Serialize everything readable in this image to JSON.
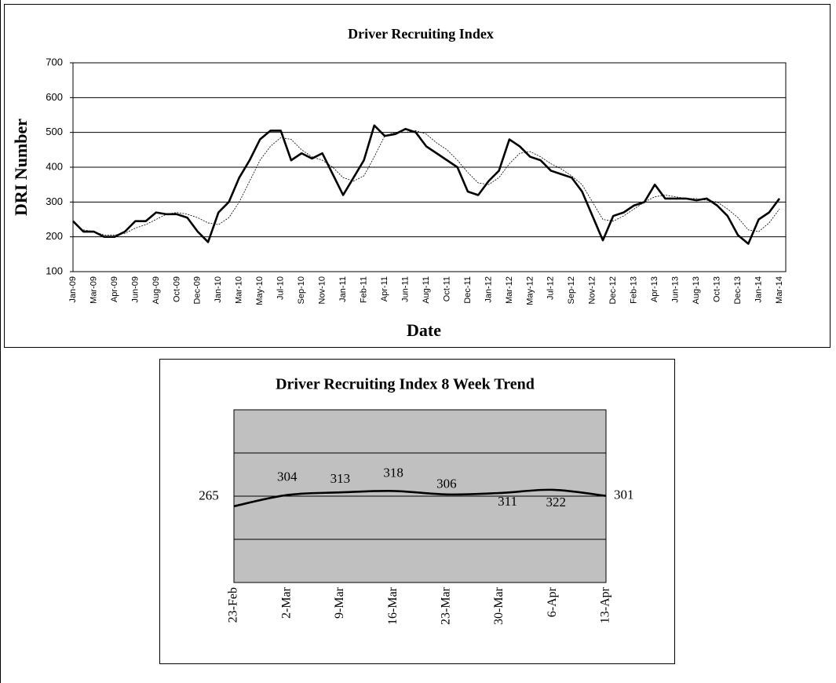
{
  "chart_data": [
    {
      "type": "line",
      "title": "Driver Recruiting Index",
      "y_label": "DRI Number",
      "x_label": "Date",
      "categories": [
        "Jan-09",
        null,
        "Mar-09",
        null,
        "Apr-09",
        null,
        "Jun-09",
        null,
        "Aug-09",
        null,
        "Oct-09",
        null,
        "Dec-09",
        null,
        "Jan-10",
        null,
        "Mar-10",
        null,
        "May-10",
        null,
        "Jul-10",
        null,
        "Sep-10",
        null,
        "Nov-10",
        null,
        "Jan-11",
        null,
        "Feb-11",
        null,
        "Apr-11",
        null,
        "Jun-11",
        null,
        "Aug-11",
        null,
        "Oct-11",
        null,
        "Dec-11",
        null,
        "Jan-12",
        null,
        "Mar-12",
        null,
        "May-12",
        null,
        "Jul-12",
        null,
        "Sep-12",
        null,
        "Nov-12",
        null,
        "Dec-12",
        null,
        "Feb-13",
        null,
        "Apr-13",
        null,
        "Jun-13",
        null,
        "Aug-13",
        null,
        "Oct-13",
        null,
        "Dec-13",
        null,
        "Jan-14",
        null,
        "Mar-14"
      ],
      "series": [
        {
          "color": "#000000",
          "style": "solid",
          "values": [
            245,
            215,
            215,
            200,
            200,
            215,
            245,
            245,
            270,
            265,
            265,
            255,
            215,
            185,
            270,
            300,
            370,
            420,
            480,
            505,
            505,
            420,
            440,
            425,
            440,
            380,
            320,
            370,
            420,
            520,
            490,
            495,
            510,
            500,
            460,
            440,
            420,
            400,
            330,
            320,
            360,
            390,
            480,
            460,
            430,
            420,
            390,
            380,
            370,
            330,
            260,
            190,
            260,
            270,
            290,
            300,
            350,
            310,
            310,
            310,
            305,
            310,
            290,
            260,
            205,
            180,
            250,
            270,
            310
          ]
        },
        {
          "color": "#000000",
          "style": "dotted",
          "values": [
            null,
            220,
            215,
            205,
            205,
            210,
            225,
            235,
            250,
            265,
            270,
            265,
            255,
            240,
            235,
            255,
            300,
            360,
            420,
            460,
            485,
            480,
            450,
            430,
            420,
            400,
            370,
            360,
            375,
            430,
            490,
            500,
            500,
            505,
            495,
            470,
            450,
            420,
            385,
            355,
            350,
            370,
            410,
            440,
            445,
            430,
            410,
            395,
            375,
            350,
            300,
            250,
            245,
            260,
            280,
            300,
            315,
            320,
            315,
            310,
            310,
            305,
            300,
            280,
            255,
            220,
            215,
            240,
            280
          ]
        }
      ],
      "ylim": [
        100,
        700
      ],
      "yticks": [
        100,
        200,
        300,
        400,
        500,
        600,
        700
      ],
      "grid": true,
      "background": "#ffffff"
    },
    {
      "type": "line",
      "title": "Driver Recruiting Index 8 Week Trend",
      "categories": [
        "23-Feb",
        "2-Mar",
        "9-Mar",
        "16-Mar",
        "23-Mar",
        "30-Mar",
        "6-Apr",
        "13-Apr"
      ],
      "series": [
        {
          "color": "#000000",
          "style": "solid",
          "smooth": true,
          "values": [
            265,
            304,
            313,
            318,
            306,
            311,
            322,
            301
          ]
        }
      ],
      "ylim": [
        0,
        600
      ],
      "yticks": [
        0,
        150,
        300,
        450,
        600
      ],
      "ytick_labels": false,
      "grid": true,
      "data_labels": true,
      "background": "#c0c0c0"
    }
  ]
}
